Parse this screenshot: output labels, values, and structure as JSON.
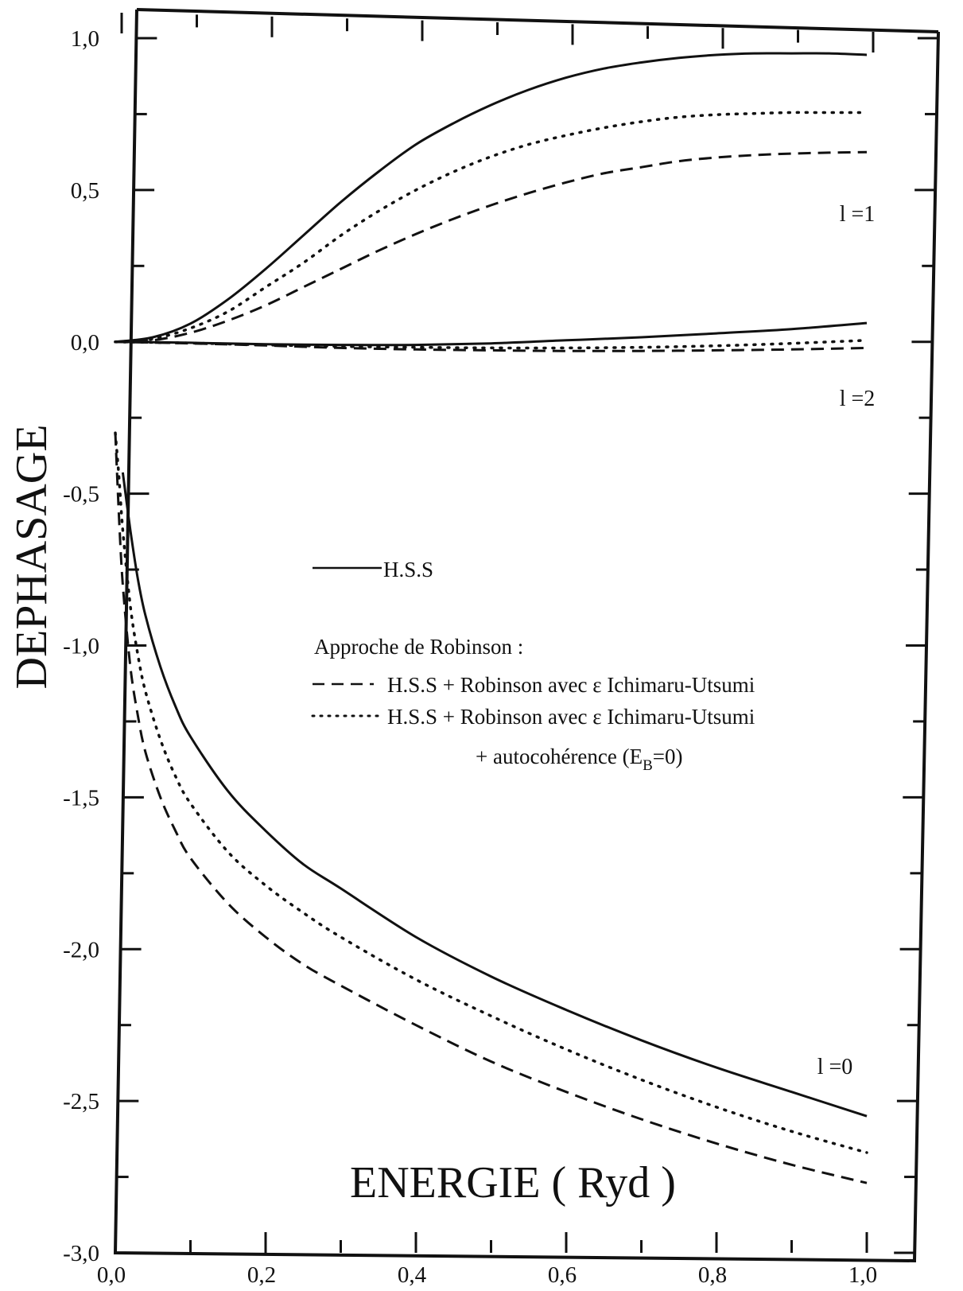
{
  "chart_data": {
    "type": "line",
    "title": "",
    "xlabel": "ENERGIE ( Ryd )",
    "ylabel": "DEPHASAGE",
    "xlim": [
      0.0,
      1.0
    ],
    "ylim": [
      -3.0,
      1.0
    ],
    "x_ticks": [
      "0,0",
      "0,2",
      "0,4",
      "0,6",
      "0,8",
      "1,0"
    ],
    "y_ticks": [
      "-3,0",
      "-2,5",
      "-2,0",
      "-1,5",
      "-1,0",
      "-0,5",
      "0,0",
      "0,5",
      "1,0"
    ],
    "grid": false,
    "legend_position": "center",
    "legend": {
      "hss": "H.S.S",
      "group_title": "Approche de Robinson :",
      "dashed": "H.S.S + Robinson avec ε Ichimaru-Utsumi",
      "dotted_line1": "H.S.S + Robinson avec ε Ichimaru-Utsumi",
      "dotted_line2_pre": "+ autocohérence (E",
      "dotted_line2_sub": "B",
      "dotted_line2_post": "=0)"
    },
    "curve_labels": [
      {
        "text": "l =1",
        "x": 0.94,
        "y": 0.42
      },
      {
        "text": "l =2",
        "x": 0.94,
        "y": -0.22
      },
      {
        "text": "l =0",
        "x": 0.94,
        "y": -2.56
      }
    ],
    "series": [
      {
        "style": "solid",
        "group": "l=1",
        "x": [
          0.0,
          0.05,
          0.1,
          0.15,
          0.2,
          0.25,
          0.3,
          0.35,
          0.4,
          0.45,
          0.5,
          0.55,
          0.6,
          0.65,
          0.7,
          0.75,
          0.8,
          0.85,
          0.9,
          0.95,
          1.0
        ],
        "y": [
          0.0,
          0.015,
          0.06,
          0.14,
          0.24,
          0.35,
          0.46,
          0.56,
          0.65,
          0.72,
          0.78,
          0.83,
          0.87,
          0.9,
          0.92,
          0.935,
          0.945,
          0.95,
          0.95,
          0.95,
          0.945
        ]
      },
      {
        "style": "dotted",
        "group": "l=1",
        "x": [
          0.0,
          0.05,
          0.1,
          0.15,
          0.2,
          0.25,
          0.3,
          0.35,
          0.4,
          0.45,
          0.5,
          0.55,
          0.6,
          0.65,
          0.7,
          0.75,
          0.8,
          0.85,
          0.9,
          0.95,
          1.0
        ],
        "y": [
          0.0,
          0.01,
          0.045,
          0.1,
          0.18,
          0.26,
          0.35,
          0.43,
          0.5,
          0.56,
          0.61,
          0.65,
          0.68,
          0.705,
          0.725,
          0.74,
          0.748,
          0.752,
          0.755,
          0.755,
          0.755
        ]
      },
      {
        "style": "dashed",
        "group": "l=1",
        "x": [
          0.0,
          0.05,
          0.1,
          0.15,
          0.2,
          0.25,
          0.3,
          0.35,
          0.4,
          0.45,
          0.5,
          0.55,
          0.6,
          0.65,
          0.7,
          0.75,
          0.8,
          0.85,
          0.9,
          0.95,
          1.0
        ],
        "y": [
          0.0,
          0.005,
          0.03,
          0.07,
          0.12,
          0.18,
          0.24,
          0.3,
          0.355,
          0.405,
          0.45,
          0.49,
          0.525,
          0.555,
          0.575,
          0.595,
          0.607,
          0.615,
          0.62,
          0.623,
          0.625
        ]
      },
      {
        "style": "solid",
        "group": "l=2",
        "x": [
          0.0,
          0.1,
          0.2,
          0.3,
          0.4,
          0.5,
          0.6,
          0.7,
          0.8,
          0.9,
          1.0
        ],
        "y": [
          0.0,
          -0.003,
          -0.008,
          -0.01,
          -0.01,
          -0.005,
          0.005,
          0.015,
          0.028,
          0.042,
          0.062
        ]
      },
      {
        "style": "dotted",
        "group": "l=2",
        "x": [
          0.0,
          0.1,
          0.2,
          0.3,
          0.4,
          0.5,
          0.6,
          0.7,
          0.8,
          0.9,
          1.0
        ],
        "y": [
          0.0,
          -0.004,
          -0.01,
          -0.015,
          -0.018,
          -0.02,
          -0.02,
          -0.018,
          -0.013,
          -0.005,
          0.005
        ]
      },
      {
        "style": "dashed",
        "group": "l=2",
        "x": [
          0.0,
          0.1,
          0.2,
          0.3,
          0.4,
          0.5,
          0.6,
          0.7,
          0.8,
          0.9,
          1.0
        ],
        "y": [
          0.0,
          -0.005,
          -0.012,
          -0.02,
          -0.025,
          -0.028,
          -0.03,
          -0.03,
          -0.028,
          -0.025,
          -0.02
        ]
      },
      {
        "style": "solid",
        "group": "l=0",
        "x": [
          0.01,
          0.02,
          0.03,
          0.04,
          0.06,
          0.08,
          0.1,
          0.15,
          0.2,
          0.25,
          0.3,
          0.4,
          0.5,
          0.6,
          0.7,
          0.8,
          0.9,
          1.0
        ],
        "y": [
          -0.43,
          -0.62,
          -0.78,
          -0.9,
          -1.07,
          -1.2,
          -1.3,
          -1.48,
          -1.61,
          -1.72,
          -1.8,
          -1.96,
          -2.09,
          -2.2,
          -2.3,
          -2.39,
          -2.47,
          -2.55
        ]
      },
      {
        "style": "dotted",
        "group": "l=0",
        "x": [
          0.0,
          0.005,
          0.01,
          0.02,
          0.03,
          0.04,
          0.06,
          0.08,
          0.1,
          0.15,
          0.2,
          0.25,
          0.3,
          0.4,
          0.5,
          0.6,
          0.7,
          0.8,
          0.9,
          1.0
        ],
        "y": [
          -0.3,
          -0.45,
          -0.62,
          -0.87,
          -1.03,
          -1.15,
          -1.31,
          -1.43,
          -1.52,
          -1.68,
          -1.79,
          -1.88,
          -1.96,
          -2.1,
          -2.22,
          -2.33,
          -2.43,
          -2.52,
          -2.6,
          -2.67
        ]
      },
      {
        "style": "dashed",
        "group": "l=0",
        "x": [
          0.0,
          0.005,
          0.01,
          0.02,
          0.03,
          0.04,
          0.06,
          0.08,
          0.1,
          0.15,
          0.2,
          0.25,
          0.3,
          0.4,
          0.5,
          0.6,
          0.7,
          0.8,
          0.9,
          1.0
        ],
        "y": [
          -0.3,
          -0.58,
          -0.8,
          -1.07,
          -1.23,
          -1.35,
          -1.5,
          -1.61,
          -1.7,
          -1.85,
          -1.96,
          -2.05,
          -2.12,
          -2.25,
          -2.37,
          -2.47,
          -2.56,
          -2.64,
          -2.71,
          -2.77
        ]
      }
    ]
  }
}
